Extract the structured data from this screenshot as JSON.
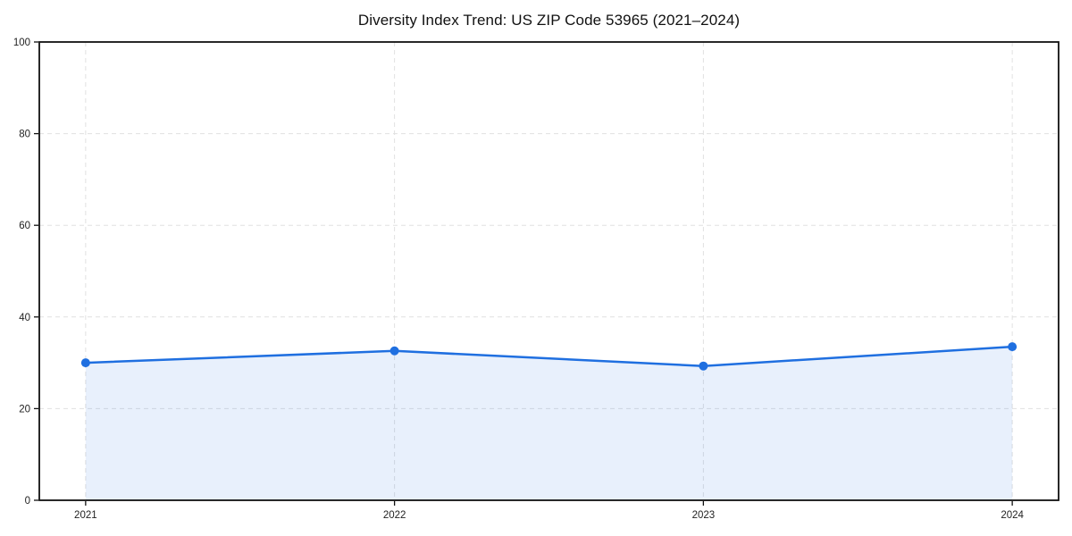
{
  "chart_data": {
    "type": "area",
    "title": "Diversity Index Trend: US ZIP Code 53965 (2021–2024)",
    "categories": [
      "2021",
      "2022",
      "2023",
      "2024"
    ],
    "series": [
      {
        "name": "Diversity Index",
        "values": [
          30.0,
          32.6,
          29.3,
          33.5
        ]
      }
    ],
    "xlabel": "",
    "ylabel": "",
    "ylim": [
      0,
      100
    ],
    "yticks": [
      0,
      20,
      40,
      60,
      80,
      100
    ],
    "grid": "dashed-both-axes",
    "legend_position": "none",
    "colors": {
      "line": "#1f6fe0",
      "marker": "#1f6fe0",
      "fill": "#1f6fe0",
      "grid": "#e0e0e0",
      "axis": "#111111",
      "tick_label": "#222222",
      "title": "#111111",
      "background": "#ffffff"
    }
  }
}
